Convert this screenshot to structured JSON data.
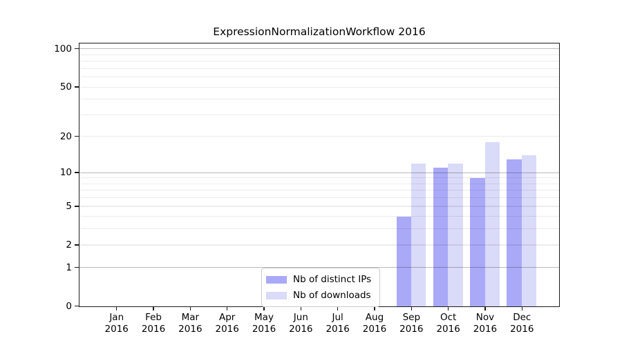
{
  "chart_data": {
    "type": "bar",
    "title": "ExpressionNormalizationWorkflow 2016",
    "categories": [
      "Jan",
      "Feb",
      "Mar",
      "Apr",
      "May",
      "Jun",
      "Jul",
      "Aug",
      "Sep",
      "Oct",
      "Nov",
      "Dec"
    ],
    "year_label": "2016",
    "series": [
      {
        "name": "Nb of distinct IPs",
        "color": "#a9a9f7",
        "values": [
          0,
          0,
          0,
          0,
          0,
          0,
          0,
          0,
          4,
          11,
          9,
          13
        ]
      },
      {
        "name": "Nb of downloads",
        "color": "#dadaf9",
        "values": [
          0,
          0,
          0,
          0,
          0,
          0,
          0,
          0,
          12,
          12,
          18,
          14
        ]
      }
    ],
    "xlabel": "",
    "ylabel": "",
    "scale": "log1p",
    "ylim": [
      0,
      113
    ],
    "y_ticks": [
      0,
      1,
      2,
      5,
      10,
      20,
      50,
      100
    ],
    "y_major_gridlines": [
      1,
      10,
      100
    ],
    "y_minor_gridlines": [
      2,
      3,
      4,
      5,
      6,
      7,
      8,
      9,
      20,
      30,
      40,
      50,
      60,
      70,
      80,
      90
    ],
    "grid": true,
    "legend_position": "bottom-center",
    "colors": {
      "background": "#ffffff",
      "spine": "#1a1a1a",
      "major_grid": "#bababa",
      "minor_grid": "#ededed"
    }
  }
}
